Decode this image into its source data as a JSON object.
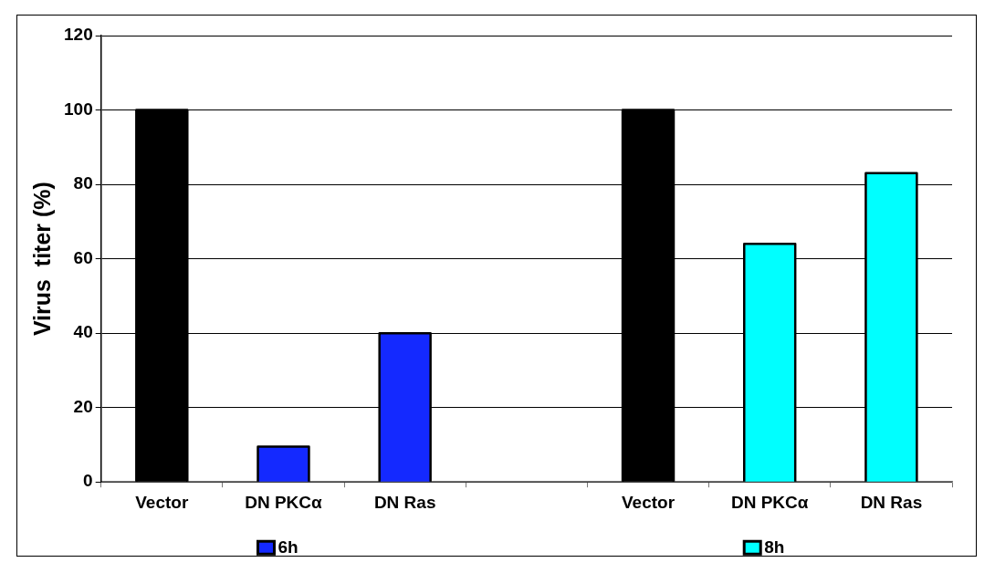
{
  "chart_data": {
    "type": "bar",
    "ylabel": "Virus  titer (%)",
    "categories": [
      "Vector",
      "DN PKCα",
      "DN Ras",
      null,
      "Vector",
      "DN PKCα",
      "DN Ras"
    ],
    "series": [
      {
        "name": "6h",
        "color": "#1429ff",
        "colors": [
          "#000000",
          "#1429ff",
          "#1429ff",
          null,
          null,
          null,
          null
        ],
        "values": [
          100,
          9.5,
          40,
          null,
          null,
          null,
          null
        ]
      },
      {
        "name": "8h",
        "color": "#00ffff",
        "colors": [
          null,
          null,
          null,
          null,
          "#000000",
          "#00ffff",
          "#00ffff"
        ],
        "values": [
          null,
          null,
          null,
          null,
          100,
          64,
          83
        ]
      }
    ],
    "ylim": [
      0,
      120
    ],
    "yticks": [
      0,
      20,
      40,
      60,
      80,
      100,
      120
    ],
    "grid": "y",
    "legend": "bottom"
  }
}
